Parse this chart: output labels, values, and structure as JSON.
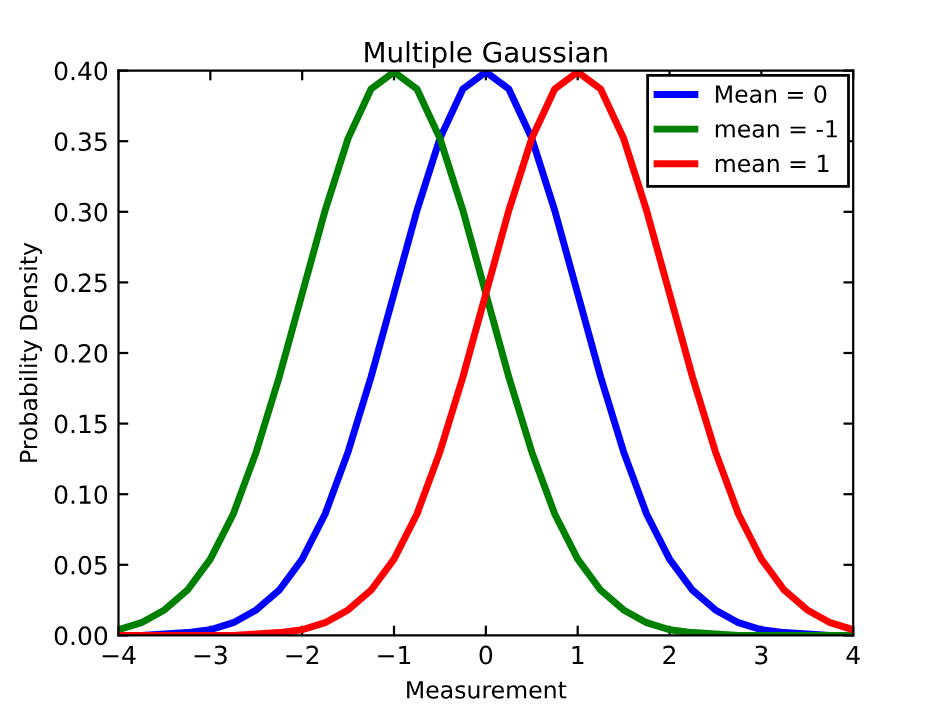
{
  "chart_data": {
    "type": "line",
    "title": "Multiple Gaussian",
    "xlabel": "Measurement",
    "ylabel": "Probability Density",
    "x": [
      -4,
      -3.75,
      -3.5,
      -3.25,
      -3,
      -2.75,
      -2.5,
      -2.25,
      -2,
      -1.75,
      -1.5,
      -1.25,
      -1,
      -0.75,
      -0.5,
      -0.25,
      0,
      0.25,
      0.5,
      0.75,
      1,
      1.25,
      1.5,
      1.75,
      2,
      2.25,
      2.5,
      2.75,
      3,
      3.25,
      3.5,
      3.75,
      4
    ],
    "series": [
      {
        "name": "Mean = 0",
        "color": "#0000ff",
        "values": [
          0.0,
          0.0,
          0.001,
          0.002,
          0.004,
          0.009,
          0.018,
          0.032,
          0.054,
          0.086,
          0.13,
          0.183,
          0.242,
          0.301,
          0.352,
          0.387,
          0.399,
          0.387,
          0.352,
          0.301,
          0.242,
          0.183,
          0.13,
          0.086,
          0.054,
          0.032,
          0.018,
          0.009,
          0.004,
          0.002,
          0.001,
          0.0,
          0.0
        ]
      },
      {
        "name": "mean = -1",
        "color": "#008000",
        "values": [
          0.004,
          0.009,
          0.018,
          0.032,
          0.054,
          0.086,
          0.13,
          0.183,
          0.242,
          0.301,
          0.352,
          0.387,
          0.399,
          0.387,
          0.352,
          0.301,
          0.242,
          0.183,
          0.13,
          0.086,
          0.054,
          0.032,
          0.018,
          0.009,
          0.004,
          0.002,
          0.001,
          0.0,
          0.0,
          0.0,
          0.0,
          0.0,
          0.0
        ]
      },
      {
        "name": "mean = 1",
        "color": "#ff0000",
        "values": [
          0.0,
          0.0,
          0.0,
          0.0,
          0.0,
          0.0,
          0.001,
          0.002,
          0.004,
          0.009,
          0.018,
          0.032,
          0.054,
          0.086,
          0.13,
          0.183,
          0.242,
          0.301,
          0.352,
          0.387,
          0.399,
          0.387,
          0.352,
          0.301,
          0.242,
          0.183,
          0.13,
          0.086,
          0.054,
          0.032,
          0.018,
          0.009,
          0.004
        ]
      }
    ],
    "xlim": [
      -4,
      4
    ],
    "xticks": [
      {
        "value": -4,
        "label": "−4"
      },
      {
        "value": -3,
        "label": "−3"
      },
      {
        "value": -2,
        "label": "−2"
      },
      {
        "value": -1,
        "label": "−1"
      },
      0,
      1,
      2,
      3,
      4
    ],
    "ylim": [
      0,
      0.4
    ],
    "yticks": [
      {
        "value": 0,
        "label": "0.00"
      },
      {
        "value": 0.05,
        "label": "0.05"
      },
      {
        "value": 0.1,
        "label": "0.10"
      },
      {
        "value": 0.15,
        "label": "0.15"
      },
      {
        "value": 0.2,
        "label": "0.20"
      },
      {
        "value": 0.25,
        "label": "0.25"
      },
      {
        "value": 0.3,
        "label": "0.30"
      },
      {
        "value": 0.35,
        "label": "0.35"
      },
      {
        "value": 0.4,
        "label": "0.40"
      }
    ],
    "grid": false,
    "legend": "top right",
    "marker": "none",
    "line_style": "solid"
  }
}
